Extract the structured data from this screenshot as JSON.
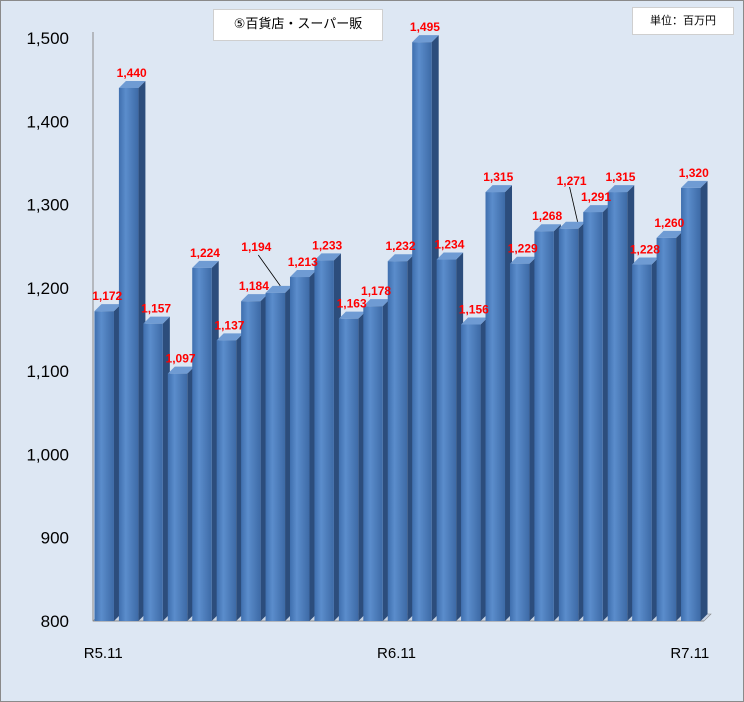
{
  "chart_data": {
    "type": "bar",
    "title": "⑤百貨店・スーパー販",
    "unit": "単位：百万円",
    "xlabel": "",
    "ylabel": "",
    "ylim": [
      800,
      1500
    ],
    "yticks": [
      "800",
      "900",
      "1,000",
      "1,100",
      "1,200",
      "1,300",
      "1,400",
      "1,500"
    ],
    "ytick_values": [
      800,
      900,
      1000,
      1100,
      1200,
      1300,
      1400,
      1500
    ],
    "x_tick_labels": [
      {
        "index": 0,
        "label": "R5.11"
      },
      {
        "index": 12,
        "label": "R6.11"
      },
      {
        "index": 24,
        "label": "R7.11"
      }
    ],
    "values": [
      1172,
      1440,
      1157,
      1097,
      1224,
      1137,
      1184,
      1194,
      1213,
      1233,
      1163,
      1178,
      1232,
      1495,
      1234,
      1156,
      1315,
      1229,
      1268,
      1271,
      1291,
      1315,
      1228,
      1260,
      1320
    ],
    "labels": [
      "1,172",
      "1,440",
      "1,157",
      "1,097",
      "1,224",
      "1,137",
      "1,184",
      "1,194",
      "1,213",
      "1,233",
      "1,163",
      "1,178",
      "1,232",
      "1,495",
      "1,234",
      "1,156",
      "1,315",
      "1,229",
      "1,268",
      "1,271",
      "1,291",
      "1,315",
      "1,228",
      "1,260",
      "1,320"
    ],
    "bar_color": "#4f81bd",
    "label_color": "#ff0000",
    "background": "#dde7f3",
    "grid": false,
    "legend": "none"
  }
}
